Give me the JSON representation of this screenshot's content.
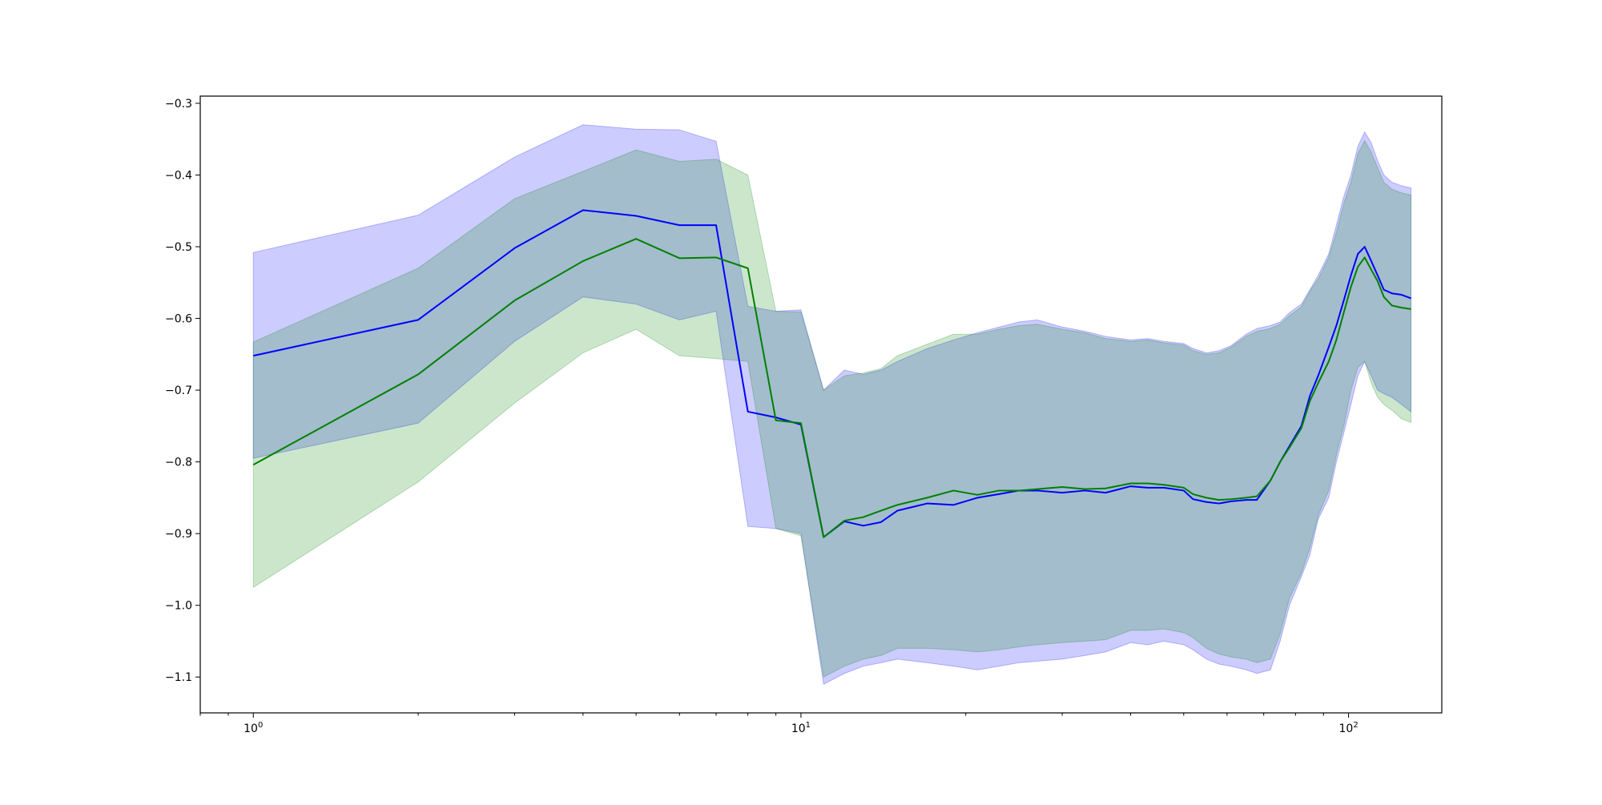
{
  "chart_data": {
    "type": "line",
    "title": "",
    "xlabel": "",
    "ylabel": "",
    "xscale": "log",
    "xlim": [
      0.8,
      148
    ],
    "ylim": [
      -1.15,
      -0.29
    ],
    "grid": false,
    "legend": "none",
    "x_ticks": [
      {
        "value": 1,
        "base": "10",
        "exp": "0"
      },
      {
        "value": 10,
        "base": "10",
        "exp": "1"
      },
      {
        "value": 100,
        "base": "10",
        "exp": "2"
      }
    ],
    "y_ticks": [
      {
        "value": -0.3,
        "label": "−0.3"
      },
      {
        "value": -0.4,
        "label": "−0.4"
      },
      {
        "value": -0.5,
        "label": "−0.5"
      },
      {
        "value": -0.6,
        "label": "−0.6"
      },
      {
        "value": -0.7,
        "label": "−0.7"
      },
      {
        "value": -0.8,
        "label": "−0.8"
      },
      {
        "value": -0.9,
        "label": "−0.9"
      },
      {
        "value": -1.0,
        "label": "−1.0"
      },
      {
        "value": -1.1,
        "label": "−1.1"
      }
    ],
    "series": [
      {
        "color": "#0000ff",
        "band_color": "#0000ff",
        "band_opacity": 0.2,
        "x": [
          1,
          2,
          3,
          4,
          5,
          6,
          7,
          8,
          9,
          10,
          11,
          12,
          13,
          14,
          15,
          17,
          19,
          21,
          23,
          25,
          27,
          30,
          33,
          36,
          40,
          43,
          46,
          50,
          52,
          55,
          58,
          61,
          65,
          68,
          72,
          75,
          78,
          82,
          85,
          88,
          92,
          95,
          98,
          101,
          104,
          107,
          110,
          113,
          116,
          120,
          125,
          130
        ],
        "mean": [
          -0.652,
          -0.602,
          -0.502,
          -0.449,
          -0.457,
          -0.47,
          -0.47,
          -0.73,
          -0.738,
          -0.748,
          -0.905,
          -0.883,
          -0.889,
          -0.884,
          -0.868,
          -0.858,
          -0.86,
          -0.85,
          -0.845,
          -0.84,
          -0.84,
          -0.843,
          -0.84,
          -0.843,
          -0.834,
          -0.836,
          -0.836,
          -0.84,
          -0.852,
          -0.856,
          -0.858,
          -0.855,
          -0.853,
          -0.853,
          -0.826,
          -0.8,
          -0.778,
          -0.75,
          -0.708,
          -0.68,
          -0.64,
          -0.61,
          -0.575,
          -0.54,
          -0.51,
          -0.5,
          -0.52,
          -0.54,
          -0.56,
          -0.565,
          -0.567,
          -0.572
        ],
        "upper": [
          -0.508,
          -0.456,
          -0.375,
          -0.33,
          -0.336,
          -0.337,
          -0.353,
          -0.583,
          -0.59,
          -0.588,
          -0.7,
          -0.672,
          -0.678,
          -0.672,
          -0.66,
          -0.642,
          -0.63,
          -0.62,
          -0.612,
          -0.605,
          -0.602,
          -0.612,
          -0.618,
          -0.625,
          -0.63,
          -0.628,
          -0.632,
          -0.635,
          -0.642,
          -0.648,
          -0.645,
          -0.638,
          -0.622,
          -0.614,
          -0.61,
          -0.605,
          -0.592,
          -0.58,
          -0.56,
          -0.54,
          -0.51,
          -0.47,
          -0.43,
          -0.4,
          -0.36,
          -0.34,
          -0.355,
          -0.38,
          -0.4,
          -0.41,
          -0.415,
          -0.418
        ],
        "lower": [
          -0.795,
          -0.746,
          -0.632,
          -0.57,
          -0.58,
          -0.602,
          -0.59,
          -0.89,
          -0.893,
          -0.9,
          -1.11,
          -1.095,
          -1.085,
          -1.08,
          -1.075,
          -1.08,
          -1.085,
          -1.09,
          -1.085,
          -1.08,
          -1.078,
          -1.075,
          -1.07,
          -1.065,
          -1.052,
          -1.055,
          -1.05,
          -1.055,
          -1.062,
          -1.075,
          -1.082,
          -1.085,
          -1.09,
          -1.095,
          -1.09,
          -1.05,
          -1.0,
          -0.96,
          -0.93,
          -0.88,
          -0.85,
          -0.8,
          -0.76,
          -0.72,
          -0.68,
          -0.66,
          -0.68,
          -0.7,
          -0.705,
          -0.71,
          -0.72,
          -0.73
        ]
      },
      {
        "color": "#008000",
        "band_color": "#008000",
        "band_opacity": 0.2,
        "x": [
          1,
          2,
          3,
          4,
          5,
          6,
          7,
          8,
          9,
          10,
          11,
          12,
          13,
          14,
          15,
          17,
          19,
          21,
          23,
          25,
          27,
          30,
          33,
          36,
          40,
          43,
          46,
          50,
          52,
          55,
          58,
          61,
          65,
          68,
          72,
          75,
          78,
          82,
          85,
          88,
          92,
          95,
          98,
          101,
          104,
          107,
          110,
          113,
          116,
          120,
          125,
          130
        ],
        "mean": [
          -0.804,
          -0.678,
          -0.575,
          -0.52,
          -0.489,
          -0.516,
          -0.515,
          -0.53,
          -0.742,
          -0.746,
          -0.905,
          -0.882,
          -0.877,
          -0.868,
          -0.86,
          -0.85,
          -0.84,
          -0.846,
          -0.84,
          -0.84,
          -0.838,
          -0.835,
          -0.838,
          -0.837,
          -0.83,
          -0.83,
          -0.832,
          -0.836,
          -0.845,
          -0.85,
          -0.853,
          -0.852,
          -0.85,
          -0.848,
          -0.826,
          -0.8,
          -0.78,
          -0.753,
          -0.715,
          -0.69,
          -0.66,
          -0.63,
          -0.592,
          -0.556,
          -0.528,
          -0.515,
          -0.532,
          -0.548,
          -0.57,
          -0.582,
          -0.585,
          -0.587
        ],
        "upper": [
          -0.633,
          -0.53,
          -0.433,
          -0.395,
          -0.365,
          -0.381,
          -0.378,
          -0.4,
          -0.59,
          -0.591,
          -0.7,
          -0.68,
          -0.676,
          -0.67,
          -0.652,
          -0.636,
          -0.622,
          -0.622,
          -0.615,
          -0.61,
          -0.608,
          -0.615,
          -0.62,
          -0.628,
          -0.632,
          -0.63,
          -0.634,
          -0.637,
          -0.645,
          -0.65,
          -0.648,
          -0.64,
          -0.625,
          -0.618,
          -0.614,
          -0.608,
          -0.596,
          -0.584,
          -0.562,
          -0.545,
          -0.515,
          -0.48,
          -0.44,
          -0.41,
          -0.37,
          -0.352,
          -0.368,
          -0.39,
          -0.41,
          -0.42,
          -0.425,
          -0.428
        ],
        "lower": [
          -0.975,
          -0.828,
          -0.718,
          -0.648,
          -0.615,
          -0.652,
          -0.656,
          -0.66,
          -0.893,
          -0.903,
          -1.1,
          -1.085,
          -1.075,
          -1.07,
          -1.06,
          -1.06,
          -1.062,
          -1.065,
          -1.062,
          -1.058,
          -1.055,
          -1.052,
          -1.05,
          -1.048,
          -1.035,
          -1.035,
          -1.033,
          -1.038,
          -1.045,
          -1.06,
          -1.068,
          -1.072,
          -1.075,
          -1.08,
          -1.075,
          -1.04,
          -0.99,
          -0.955,
          -0.92,
          -0.875,
          -0.84,
          -0.79,
          -0.75,
          -0.7,
          -0.668,
          -0.66,
          -0.69,
          -0.71,
          -0.72,
          -0.728,
          -0.74,
          -0.745
        ]
      }
    ]
  }
}
